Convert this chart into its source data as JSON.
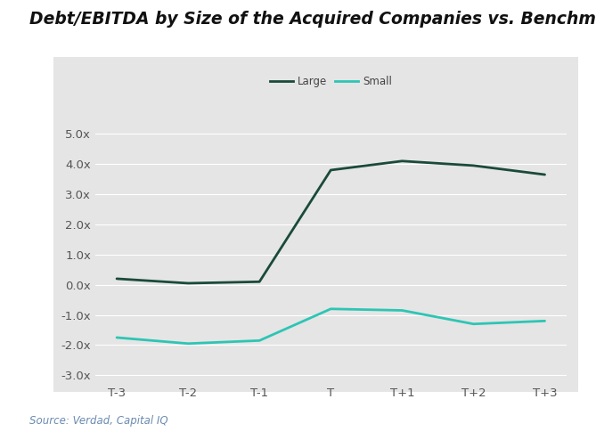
{
  "title": "Debt/EBITDA by Size of the Acquired Companies vs. Benchmark",
  "source": "Source: Verdad, Capital IQ",
  "x_labels": [
    "T-3",
    "T-2",
    "T-1",
    "T",
    "T+1",
    "T+2",
    "T+3"
  ],
  "large_values": [
    0.2,
    0.05,
    0.1,
    3.8,
    4.1,
    3.95,
    3.65
  ],
  "small_values": [
    -1.75,
    -1.95,
    -1.85,
    -0.8,
    -0.85,
    -1.3,
    -1.2
  ],
  "large_color": "#1a4a3a",
  "small_color": "#2dc5b4",
  "ylim": [
    -3.25,
    5.5
  ],
  "yticks": [
    -3.0,
    -2.0,
    -1.0,
    0.0,
    1.0,
    2.0,
    3.0,
    4.0,
    5.0
  ],
  "panel_background": "#e5e5e5",
  "outer_background": "#ffffff",
  "title_fontsize": 13.5,
  "legend_fontsize": 8.5,
  "tick_fontsize": 9.5,
  "source_fontsize": 8.5,
  "line_width": 2.0,
  "legend_text_color": "#444444",
  "tick_color": "#555555",
  "source_color": "#6a8ab0",
  "grid_color": "#ffffff",
  "title_color": "#111111"
}
